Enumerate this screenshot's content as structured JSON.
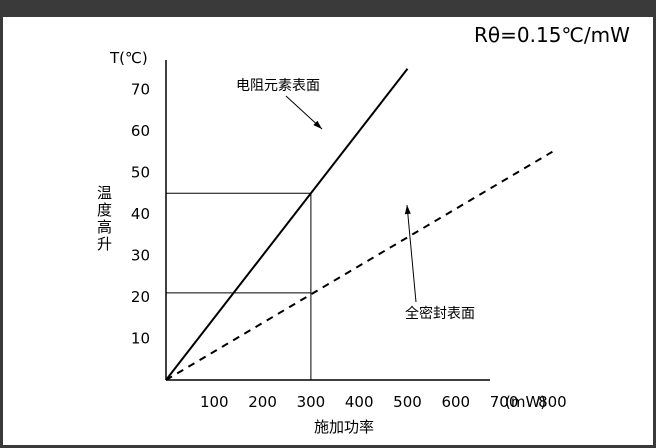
{
  "chart_data": {
    "type": "line",
    "formula": "Rθ=0.15℃/mW",
    "y_unit_label": "T(℃)",
    "ylabel": "温度高升",
    "xlabel": "施加功率",
    "x_unit_label": "(mW)",
    "xlim": [
      0,
      850
    ],
    "ylim": [
      0,
      75
    ],
    "x_ticks": [
      100,
      200,
      300,
      400,
      500,
      600,
      700,
      800
    ],
    "y_ticks": [
      10,
      20,
      30,
      40,
      50,
      60,
      70
    ],
    "grid": false,
    "series": [
      {
        "name": "电阻元素表面",
        "style": "solid",
        "x": [
          0,
          500
        ],
        "y": [
          0,
          75
        ]
      },
      {
        "name": "全密封表面",
        "style": "dashed",
        "x": [
          0,
          800
        ],
        "y": [
          0,
          55
        ]
      }
    ],
    "reference_lines": [
      {
        "x": 300,
        "y_points": [
          45,
          21
        ]
      }
    ]
  }
}
